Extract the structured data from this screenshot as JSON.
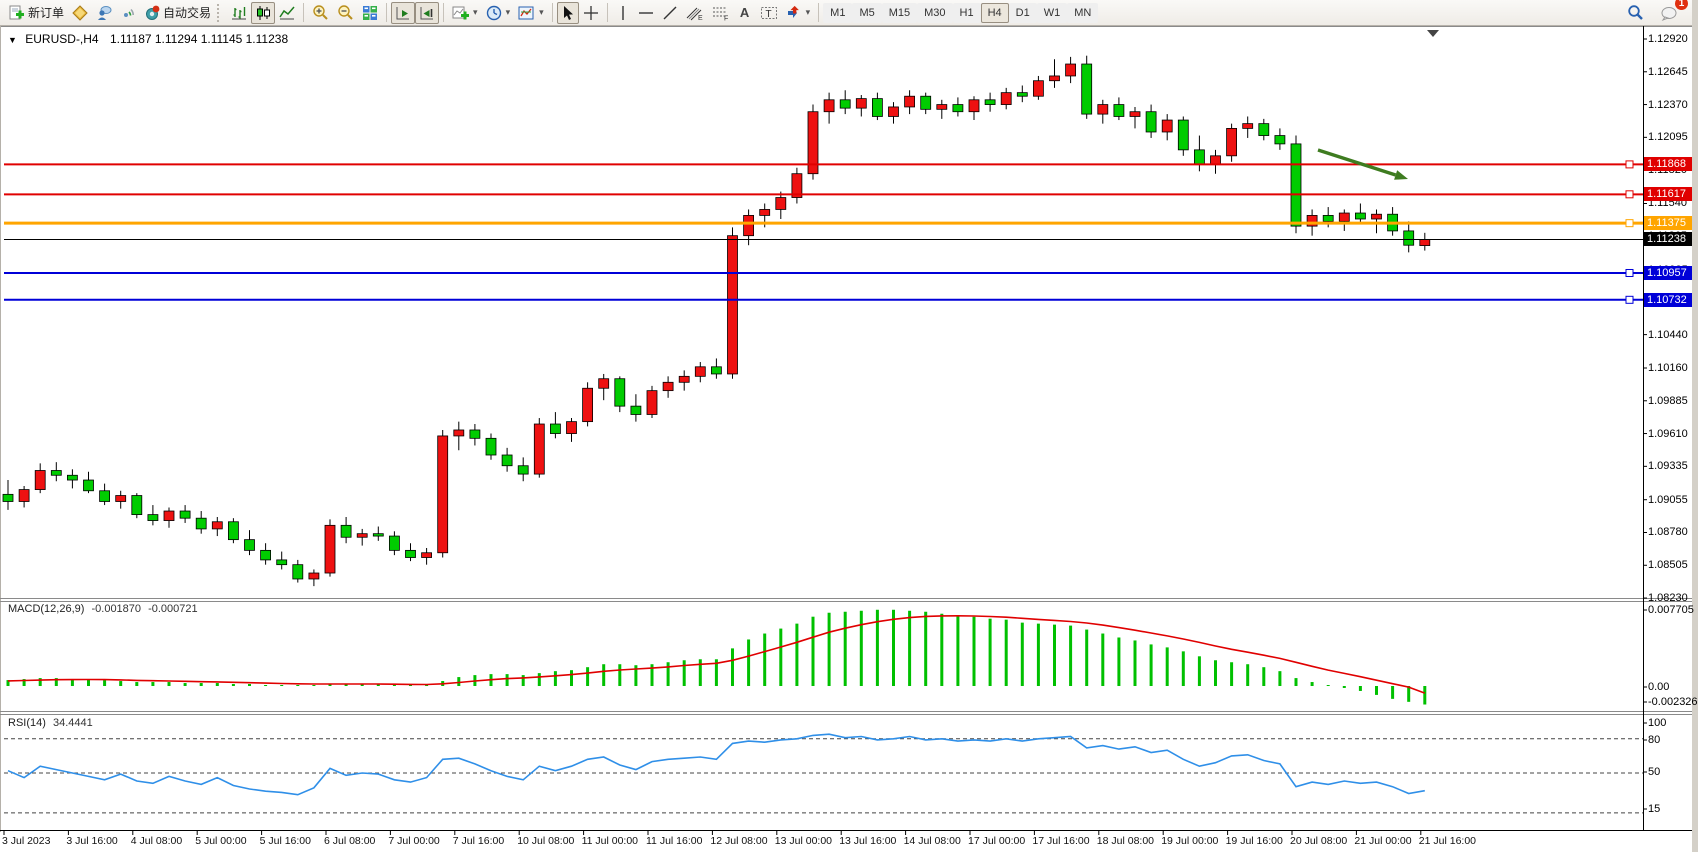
{
  "toolbar": {
    "new_order_label": "新订单",
    "autotrading_label": "自动交易",
    "timeframes": [
      "M1",
      "M5",
      "M15",
      "M30",
      "H1",
      "H4",
      "D1",
      "W1",
      "MN"
    ],
    "active_timeframe": "H4",
    "notification_badge": "1"
  },
  "chart": {
    "title_symbol": "EURUSD-,H4",
    "title_ohlc": "1.11187 1.11294 1.11145 1.11238"
  },
  "macd_panel": {
    "name_label": "MACD(12,26,9)",
    "main_value": "-0.001870",
    "signal_value": "-0.000721"
  },
  "rsi_panel": {
    "name_label": "RSI(14)",
    "value": "34.4441"
  },
  "chart_data": {
    "type": "candlestick+indicators",
    "symbol": "EURUSD-",
    "timeframe": "H4",
    "current_ohlc": {
      "open": 1.11187,
      "high": 1.11294,
      "low": 1.11145,
      "close": 1.11238
    },
    "ylim": [
      1.0823,
      1.1292
    ],
    "grid": false,
    "price_axis_ticks": [
      "1.12920",
      "1.12645",
      "1.12370",
      "1.12095",
      "1.11820",
      "1.11540",
      "1.11265",
      "1.10985",
      "1.10710",
      "1.10440",
      "1.10160",
      "1.09885",
      "1.09610",
      "1.09335",
      "1.09055",
      "1.08780",
      "1.08505",
      "1.08230"
    ],
    "hlines": [
      {
        "price": 1.11868,
        "label": "1.11868",
        "color": "#E00000",
        "width": 2
      },
      {
        "price": 1.11617,
        "label": "1.11617",
        "color": "#E00000",
        "width": 2
      },
      {
        "price": 1.11375,
        "label": "1.11375",
        "color": "#FFA500",
        "width": 3
      },
      {
        "price": 1.10957,
        "label": "1.10957",
        "color": "#0000D8",
        "width": 2
      },
      {
        "price": 1.10732,
        "label": "1.10732",
        "color": "#0000D8",
        "width": 2
      }
    ],
    "bid_line": {
      "price": 1.11238,
      "label": "1.11238",
      "color": "#000000"
    },
    "candles": [
      [
        1.091,
        1.0922,
        1.0897,
        1.0904
      ],
      [
        1.0904,
        1.0917,
        1.0899,
        1.0914
      ],
      [
        1.0914,
        1.0936,
        1.0911,
        1.093
      ],
      [
        1.093,
        1.0937,
        1.0921,
        1.0926
      ],
      [
        1.0926,
        1.0931,
        1.0915,
        1.0922
      ],
      [
        1.0922,
        1.0929,
        1.0911,
        1.0913
      ],
      [
        1.0913,
        1.0919,
        1.0901,
        1.0904
      ],
      [
        1.0904,
        1.0913,
        1.0898,
        1.0909
      ],
      [
        1.0909,
        1.0911,
        1.089,
        1.0893
      ],
      [
        1.0893,
        1.0901,
        1.0884,
        1.0888
      ],
      [
        1.0888,
        1.0899,
        1.0882,
        1.0896
      ],
      [
        1.0896,
        1.0901,
        1.0886,
        1.089
      ],
      [
        1.089,
        1.0896,
        1.0877,
        1.0881
      ],
      [
        1.0881,
        1.0891,
        1.0875,
        1.0887
      ],
      [
        1.0887,
        1.089,
        1.0869,
        1.0872
      ],
      [
        1.0872,
        1.088,
        1.0859,
        1.0863
      ],
      [
        1.0863,
        1.0869,
        1.0851,
        1.0855
      ],
      [
        1.0855,
        1.0862,
        1.0847,
        1.0851
      ],
      [
        1.0851,
        1.0855,
        1.0836,
        1.0839
      ],
      [
        1.0839,
        1.0847,
        1.0833,
        1.0844
      ],
      [
        1.0844,
        1.0889,
        1.0841,
        1.0884
      ],
      [
        1.0884,
        1.0891,
        1.0869,
        1.0874
      ],
      [
        1.0874,
        1.0881,
        1.0867,
        1.0877
      ],
      [
        1.0877,
        1.0883,
        1.0871,
        1.0875
      ],
      [
        1.0875,
        1.0879,
        1.0859,
        1.0863
      ],
      [
        1.0863,
        1.0869,
        1.0854,
        1.0857
      ],
      [
        1.0857,
        1.0865,
        1.0851,
        1.0861
      ],
      [
        1.0861,
        1.0964,
        1.0857,
        1.0959
      ],
      [
        1.0959,
        1.0971,
        1.0947,
        1.0964
      ],
      [
        1.0964,
        1.0969,
        1.0951,
        1.0957
      ],
      [
        1.0957,
        1.0961,
        1.0939,
        1.0943
      ],
      [
        1.0943,
        1.0949,
        1.0929,
        1.0934
      ],
      [
        1.0934,
        1.0941,
        1.0921,
        1.0927
      ],
      [
        1.0927,
        1.0974,
        1.0924,
        1.0969
      ],
      [
        1.0969,
        1.0979,
        1.0957,
        1.0961
      ],
      [
        1.0961,
        1.0974,
        1.0954,
        1.0971
      ],
      [
        1.0971,
        1.1004,
        1.0967,
        1.0999
      ],
      [
        1.0999,
        1.1011,
        1.0989,
        1.1007
      ],
      [
        1.1007,
        1.1009,
        1.0979,
        1.0984
      ],
      [
        1.0984,
        1.0994,
        1.0971,
        1.0977
      ],
      [
        1.0977,
        1.1001,
        1.0974,
        1.0997
      ],
      [
        1.0997,
        1.1009,
        1.0991,
        1.1004
      ],
      [
        1.1004,
        1.1014,
        1.0997,
        1.1009
      ],
      [
        1.1009,
        1.1021,
        1.1004,
        1.1017
      ],
      [
        1.1017,
        1.1024,
        1.1007,
        1.1011
      ],
      [
        1.1011,
        1.1134,
        1.1007,
        1.1127
      ],
      [
        1.1127,
        1.1149,
        1.1119,
        1.1144
      ],
      [
        1.1144,
        1.1154,
        1.1134,
        1.1149
      ],
      [
        1.1149,
        1.1164,
        1.1141,
        1.1159
      ],
      [
        1.1159,
        1.1184,
        1.1154,
        1.1179
      ],
      [
        1.1179,
        1.1237,
        1.1174,
        1.1231
      ],
      [
        1.1231,
        1.1247,
        1.1221,
        1.1241
      ],
      [
        1.1241,
        1.1249,
        1.1229,
        1.1234
      ],
      [
        1.1234,
        1.1245,
        1.1227,
        1.1242
      ],
      [
        1.1242,
        1.1247,
        1.1224,
        1.1227
      ],
      [
        1.1227,
        1.1239,
        1.1221,
        1.1235
      ],
      [
        1.1235,
        1.1249,
        1.1229,
        1.1244
      ],
      [
        1.1244,
        1.1247,
        1.1229,
        1.1233
      ],
      [
        1.1233,
        1.1241,
        1.1225,
        1.1237
      ],
      [
        1.1237,
        1.1243,
        1.1227,
        1.1231
      ],
      [
        1.1231,
        1.1244,
        1.1224,
        1.1241
      ],
      [
        1.1241,
        1.1247,
        1.1231,
        1.1237
      ],
      [
        1.1237,
        1.1251,
        1.1233,
        1.1247
      ],
      [
        1.1247,
        1.1253,
        1.1239,
        1.1244
      ],
      [
        1.1244,
        1.1261,
        1.1241,
        1.1257
      ],
      [
        1.1257,
        1.1275,
        1.1251,
        1.1261
      ],
      [
        1.1261,
        1.1277,
        1.1255,
        1.1271
      ],
      [
        1.1271,
        1.1278,
        1.1225,
        1.1229
      ],
      [
        1.1229,
        1.1241,
        1.1221,
        1.1237
      ],
      [
        1.1237,
        1.1243,
        1.1224,
        1.1227
      ],
      [
        1.1227,
        1.1235,
        1.1217,
        1.1231
      ],
      [
        1.1231,
        1.1237,
        1.1209,
        1.1214
      ],
      [
        1.1214,
        1.1229,
        1.1207,
        1.1224
      ],
      [
        1.1224,
        1.1227,
        1.1194,
        1.1199
      ],
      [
        1.1199,
        1.1211,
        1.1181,
        1.1187
      ],
      [
        1.1187,
        1.1199,
        1.1179,
        1.1194
      ],
      [
        1.1194,
        1.1221,
        1.1189,
        1.1217
      ],
      [
        1.1217,
        1.1227,
        1.1209,
        1.1221
      ],
      [
        1.1221,
        1.1225,
        1.1207,
        1.1211
      ],
      [
        1.1211,
        1.1217,
        1.1199,
        1.1204
      ],
      [
        1.1204,
        1.1211,
        1.1129,
        1.1135
      ],
      [
        1.1135,
        1.1149,
        1.1127,
        1.1144
      ],
      [
        1.1144,
        1.1151,
        1.1134,
        1.1139
      ],
      [
        1.1139,
        1.1149,
        1.1131,
        1.1146
      ],
      [
        1.1146,
        1.1154,
        1.1137,
        1.1141
      ],
      [
        1.1141,
        1.1149,
        1.1129,
        1.1145
      ],
      [
        1.1145,
        1.1151,
        1.1127,
        1.1131
      ],
      [
        1.1131,
        1.1139,
        1.1113,
        1.1119
      ],
      [
        1.11187,
        1.11294,
        1.11145,
        1.11238
      ]
    ],
    "macd": {
      "params": "12,26,9",
      "axis_ticks": [
        {
          "text": "0.007705",
          "y": 610
        },
        {
          "text": "0.00",
          "y": 687
        },
        {
          "text": "-0.002326",
          "y": 702
        }
      ],
      "histogram": [
        0.0006,
        0.0007,
        0.0008,
        0.0008,
        0.0007,
        0.0007,
        0.0006,
        0.0005,
        0.0004,
        0.0004,
        0.0004,
        0.0003,
        0.0003,
        0.0003,
        0.0002,
        0.0002,
        0.0001,
        0.0001,
        0.0001,
        0.0001,
        0.0002,
        0.0002,
        0.0002,
        0.0002,
        0.0001,
        0.0001,
        0.0001,
        0.0005,
        0.0009,
        0.0011,
        0.0012,
        0.0012,
        0.0011,
        0.0013,
        0.0015,
        0.0016,
        0.0019,
        0.0022,
        0.0022,
        0.0021,
        0.0022,
        0.0024,
        0.0026,
        0.0027,
        0.0027,
        0.0038,
        0.0047,
        0.0053,
        0.0058,
        0.0063,
        0.007,
        0.0074,
        0.0075,
        0.0076,
        0.0077,
        0.0077,
        0.0076,
        0.0075,
        0.0073,
        0.0071,
        0.007,
        0.0068,
        0.0067,
        0.0064,
        0.0063,
        0.0062,
        0.0061,
        0.0057,
        0.0053,
        0.0049,
        0.0046,
        0.0042,
        0.0039,
        0.0035,
        0.003,
        0.0026,
        0.0024,
        0.0022,
        0.0019,
        0.0015,
        0.0008,
        0.0004,
        0.0001,
        -0.0002,
        -0.0005,
        -0.0009,
        -0.0013,
        -0.0016,
        -0.00187
      ],
      "signal": [
        0.00052,
        0.00056,
        0.0006,
        0.00064,
        0.00065,
        0.00066,
        0.00065,
        0.00062,
        0.00057,
        0.00054,
        0.00051,
        0.00047,
        0.00043,
        0.00041,
        0.00037,
        0.00033,
        0.00029,
        0.00025,
        0.00022,
        0.0002,
        0.0002,
        0.0002,
        0.0002,
        0.0002,
        0.00018,
        0.00016,
        0.00015,
        0.00022,
        0.00035,
        0.0005,
        0.00064,
        0.00075,
        0.00082,
        0.00092,
        0.00103,
        0.00115,
        0.0013,
        0.00148,
        0.00162,
        0.00172,
        0.00181,
        0.00193,
        0.00207,
        0.00219,
        0.00229,
        0.0026,
        0.00302,
        0.00347,
        0.00394,
        0.00441,
        0.00493,
        0.00543,
        0.00584,
        0.00619,
        0.00649,
        0.00674,
        0.00691,
        0.00703,
        0.00708,
        0.00709,
        0.00707,
        0.00702,
        0.00695,
        0.00684,
        0.00673,
        0.00663,
        0.00652,
        0.00636,
        0.00615,
        0.0059,
        0.00564,
        0.00535,
        0.00506,
        0.00475,
        0.0044,
        0.00404,
        0.00371,
        0.00341,
        0.00311,
        0.00279,
        0.00239,
        0.00199,
        0.00161,
        0.00127,
        0.00094,
        0.00059,
        0.00023,
        -0.00011,
        -0.00072
      ]
    },
    "rsi": {
      "period": 14,
      "axis_ticks": [
        {
          "text": "100",
          "y": 723
        },
        {
          "text": "80",
          "y": 740
        },
        {
          "text": "50",
          "y": 772
        },
        {
          "text": "15",
          "y": 809
        }
      ],
      "levels": [
        80,
        50,
        15
      ],
      "values": [
        52,
        46,
        56,
        53,
        50,
        47,
        44,
        49,
        43,
        41,
        47,
        43,
        40,
        46,
        39,
        36,
        34,
        33,
        31,
        37,
        54,
        48,
        50,
        49,
        44,
        42,
        46,
        62,
        63,
        58,
        52,
        47,
        44,
        56,
        52,
        56,
        62,
        64,
        57,
        53,
        60,
        62,
        63,
        64,
        62,
        76,
        78,
        77,
        79,
        80,
        83,
        84,
        81,
        82,
        79,
        80,
        82,
        79,
        80,
        78,
        79,
        78,
        80,
        78,
        80,
        81,
        82,
        72,
        74,
        71,
        73,
        68,
        70,
        62,
        56,
        59,
        65,
        66,
        61,
        58,
        38,
        42,
        40,
        43,
        41,
        42,
        38,
        32,
        34.44
      ]
    },
    "time_labels": [
      "3 Jul 2023",
      "3 Jul 16:00",
      "4 Jul 08:00",
      "5 Jul 00:00",
      "5 Jul 16:00",
      "6 Jul 08:00",
      "7 Jul 00:00",
      "7 Jul 16:00",
      "10 Jul 08:00",
      "11 Jul 00:00",
      "11 Jul 16:00",
      "12 Jul 08:00",
      "13 Jul 00:00",
      "13 Jul 16:00",
      "14 Jul 08:00",
      "17 Jul 00:00",
      "17 Jul 16:00",
      "18 Jul 08:00",
      "19 Jul 00:00",
      "19 Jul 16:00",
      "20 Jul 08:00",
      "21 Jul 00:00",
      "21 Jul 16:00"
    ],
    "annotation_arrow": {
      "x1": 1318,
      "y1": 150,
      "x2": 1408,
      "y2": 179,
      "color": "#3E7C20"
    }
  }
}
